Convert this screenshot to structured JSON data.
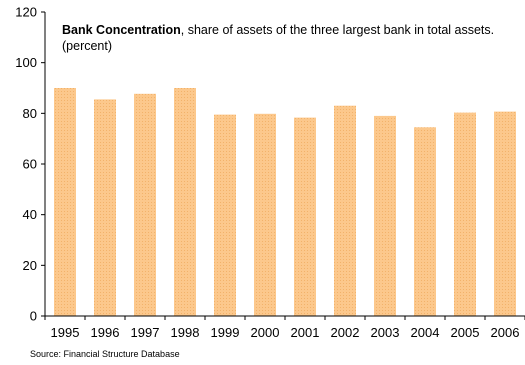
{
  "chart_data": {
    "type": "bar",
    "title_bold": "Bank Concentration",
    "title_rest": ", share of assets of the three largest bank in total assets.",
    "subtitle": "(percent)",
    "source": "Source: Financial Structure Database",
    "categories": [
      "1995",
      "1996",
      "1997",
      "1998",
      "1999",
      "2000",
      "2001",
      "2002",
      "2003",
      "2004",
      "2005",
      "2006"
    ],
    "values": [
      90,
      85.5,
      87.7,
      90,
      79.5,
      79.8,
      78.3,
      83,
      79,
      74.5,
      80.3,
      80.7
    ],
    "ylim": [
      0,
      120
    ],
    "yticks": [
      0,
      20,
      40,
      60,
      80,
      100,
      120
    ],
    "xlabel": "",
    "ylabel": "",
    "grid": false,
    "colors": {
      "bar": "#fcc88c",
      "bar_dot": "#f2b26a",
      "axis": "#000000"
    }
  }
}
